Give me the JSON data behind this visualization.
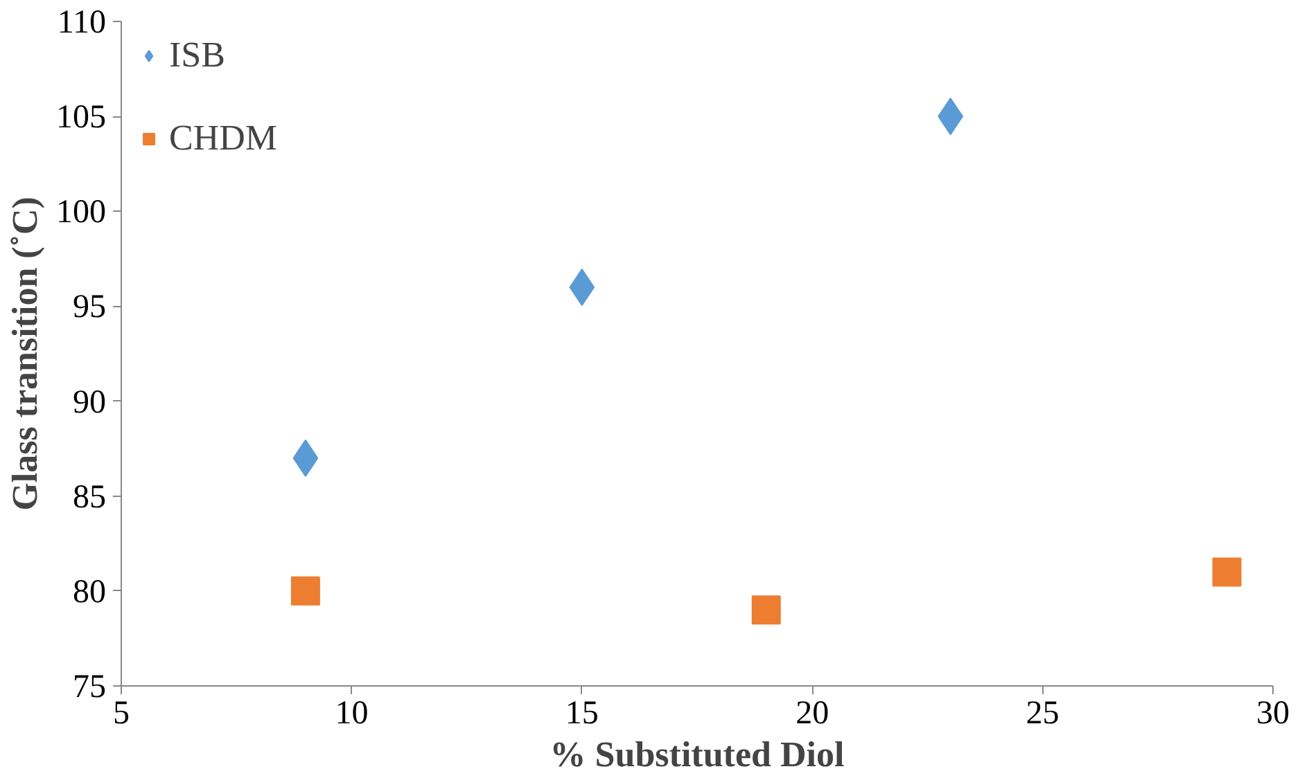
{
  "chart_data": {
    "type": "scatter",
    "xlabel": "% Substituted Diol",
    "ylabel": "Glass transition (˚C)",
    "xlim": [
      5,
      30
    ],
    "xticks": [
      5,
      10,
      15,
      20,
      25,
      30
    ],
    "ylim": [
      75,
      110
    ],
    "yticks": [
      75,
      80,
      85,
      90,
      95,
      100,
      105,
      110
    ],
    "grid": false,
    "legend": "top left",
    "series": [
      {
        "name": "ISB",
        "color": "#5b9bd5",
        "marker": "diamond",
        "x": [
          9,
          15,
          23
        ],
        "values": [
          87,
          96,
          105
        ]
      },
      {
        "name": "CHDM",
        "color": "#ed7d31",
        "marker": "square",
        "x": [
          9,
          19,
          29
        ],
        "values": [
          80,
          79,
          81
        ]
      }
    ]
  }
}
